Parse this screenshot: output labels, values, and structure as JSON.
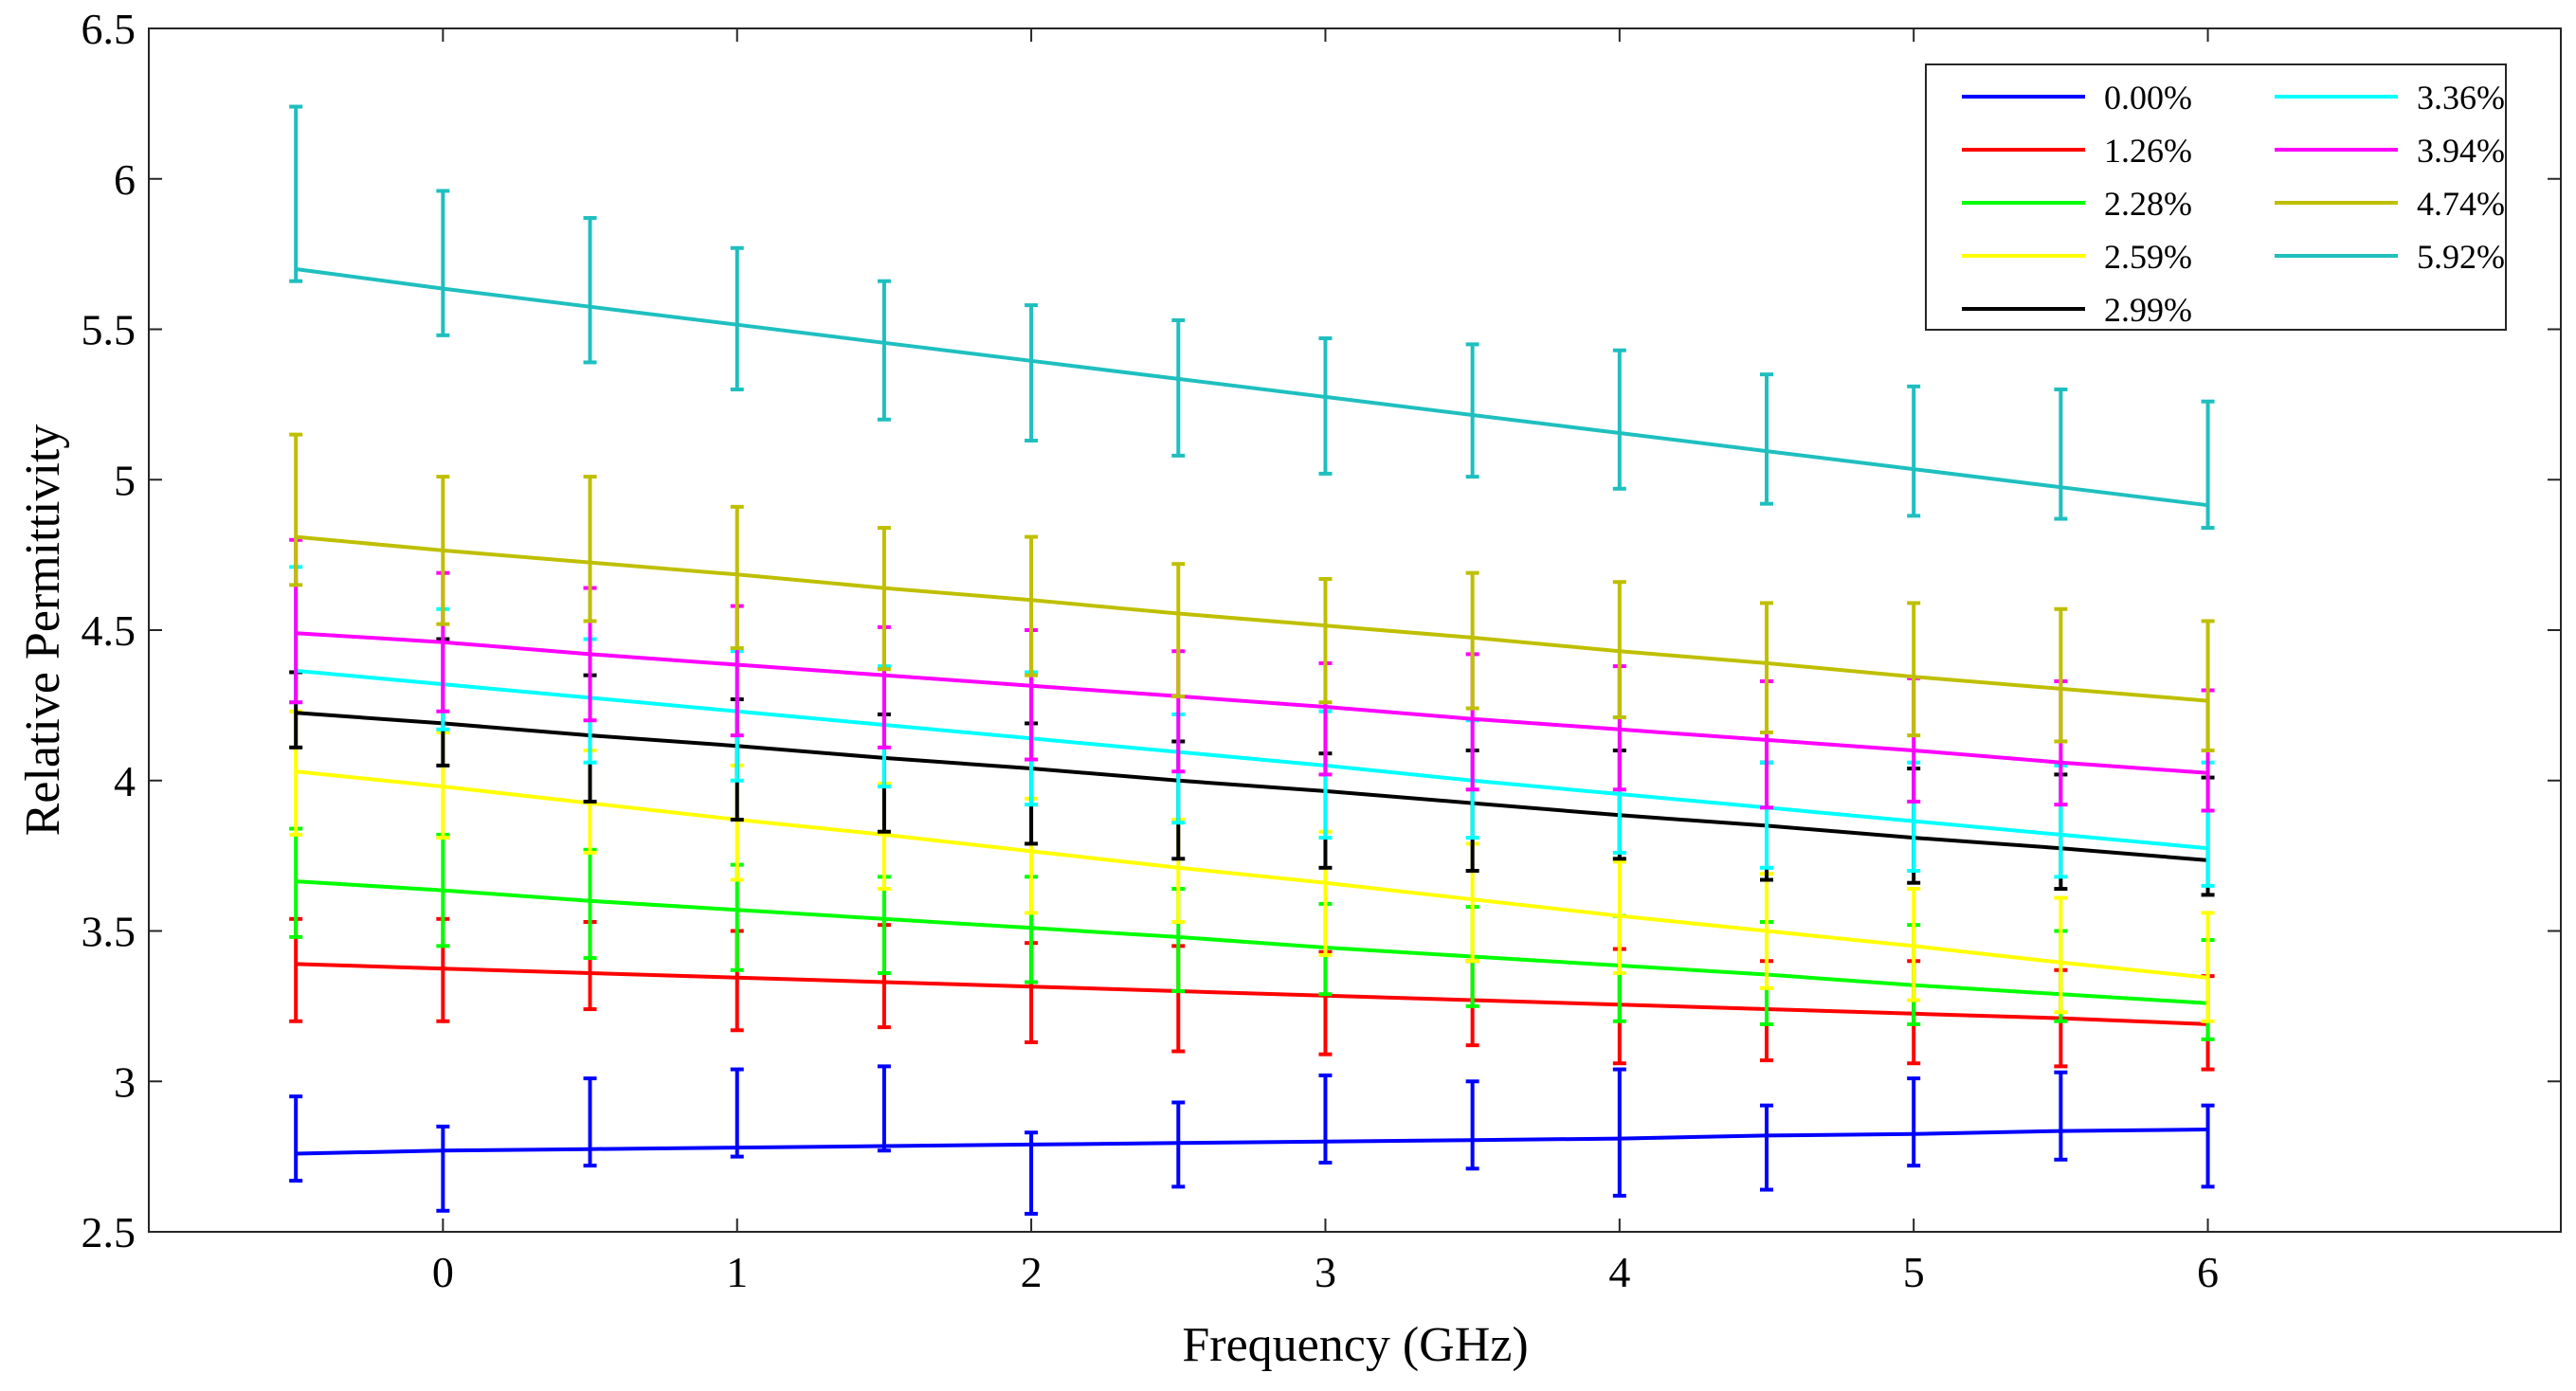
{
  "chart_data": {
    "type": "line",
    "title": "",
    "xlabel": "Frequency (GHz)",
    "ylabel": "Relative Permittivity",
    "xlim": [
      -1,
      7.2
    ],
    "ylim": [
      2.5,
      6.5
    ],
    "xticks": [
      0,
      1,
      2,
      3,
      4,
      5,
      6
    ],
    "yticks": [
      2.5,
      3,
      3.5,
      4,
      4.5,
      5,
      5.5,
      6,
      6.5
    ],
    "xtick_labels": [
      "0",
      "1",
      "2",
      "3",
      "4",
      "5",
      "6"
    ],
    "ytick_labels": [
      "2.5",
      "3",
      "3.5",
      "4",
      "4.5",
      "5",
      "5.5",
      "6",
      "6.5"
    ],
    "grid": false,
    "legend_position": "top-right",
    "x": [
      -0.5,
      0,
      0.5,
      1,
      1.5,
      2,
      2.5,
      3,
      3.5,
      4,
      4.5,
      5,
      5.5,
      6
    ],
    "series": [
      {
        "name": "0.00%",
        "color": "#0000ff",
        "values": [
          2.76,
          2.77,
          2.775,
          2.78,
          2.785,
          2.79,
          2.795,
          2.8,
          2.805,
          2.81,
          2.82,
          2.825,
          2.835,
          2.84
        ],
        "err_low": [
          2.67,
          2.57,
          2.72,
          2.75,
          2.77,
          2.56,
          2.65,
          2.73,
          2.71,
          2.62,
          2.64,
          2.72,
          2.74,
          2.65
        ],
        "err_high": [
          2.95,
          2.85,
          3.01,
          3.04,
          3.05,
          2.83,
          2.93,
          3.02,
          3.0,
          3.04,
          2.92,
          3.01,
          3.03,
          2.92
        ]
      },
      {
        "name": "1.26%",
        "color": "#ff0000",
        "values": [
          3.39,
          3.375,
          3.36,
          3.345,
          3.33,
          3.315,
          3.3,
          3.285,
          3.27,
          3.255,
          3.24,
          3.225,
          3.21,
          3.19
        ],
        "err_low": [
          3.2,
          3.2,
          3.24,
          3.17,
          3.18,
          3.13,
          3.1,
          3.09,
          3.12,
          3.06,
          3.07,
          3.06,
          3.05,
          3.04
        ],
        "err_high": [
          3.54,
          3.54,
          3.53,
          3.5,
          3.52,
          3.46,
          3.45,
          3.43,
          3.4,
          3.44,
          3.4,
          3.4,
          3.37,
          3.35
        ]
      },
      {
        "name": "2.28%",
        "color": "#00ff00",
        "values": [
          3.665,
          3.635,
          3.6,
          3.57,
          3.54,
          3.51,
          3.48,
          3.445,
          3.415,
          3.385,
          3.355,
          3.32,
          3.29,
          3.26
        ],
        "err_low": [
          3.48,
          3.45,
          3.41,
          3.37,
          3.36,
          3.33,
          3.3,
          3.29,
          3.25,
          3.2,
          3.19,
          3.19,
          3.2,
          3.14
        ],
        "err_high": [
          3.84,
          3.82,
          3.77,
          3.72,
          3.68,
          3.68,
          3.64,
          3.59,
          3.58,
          3.55,
          3.53,
          3.52,
          3.5,
          3.47
        ]
      },
      {
        "name": "2.59%",
        "color": "#ffff00",
        "values": [
          4.03,
          3.98,
          3.925,
          3.87,
          3.82,
          3.765,
          3.71,
          3.66,
          3.605,
          3.55,
          3.5,
          3.45,
          3.395,
          3.345
        ],
        "err_low": [
          3.82,
          3.81,
          3.76,
          3.67,
          3.64,
          3.56,
          3.53,
          3.42,
          3.4,
          3.36,
          3.31,
          3.27,
          3.23,
          3.2
        ],
        "err_high": [
          4.23,
          4.16,
          4.1,
          4.05,
          3.99,
          3.94,
          3.87,
          3.83,
          3.79,
          3.73,
          3.69,
          3.64,
          3.61,
          3.56
        ]
      },
      {
        "name": "2.99%",
        "color": "#000000",
        "values": [
          4.225,
          4.19,
          4.15,
          4.115,
          4.075,
          4.04,
          4.0,
          3.965,
          3.925,
          3.885,
          3.85,
          3.81,
          3.775,
          3.735
        ],
        "err_low": [
          4.11,
          4.05,
          3.93,
          3.87,
          3.83,
          3.79,
          3.74,
          3.71,
          3.7,
          3.74,
          3.67,
          3.66,
          3.64,
          3.62
        ],
        "err_high": [
          4.36,
          4.47,
          4.35,
          4.27,
          4.22,
          4.19,
          4.13,
          4.09,
          4.1,
          4.1,
          4.06,
          4.04,
          4.02,
          4.01
        ]
      },
      {
        "name": "3.36%",
        "color": "#00ffff",
        "values": [
          4.365,
          4.32,
          4.275,
          4.23,
          4.185,
          4.14,
          4.095,
          4.05,
          4.0,
          3.955,
          3.91,
          3.865,
          3.82,
          3.775
        ],
        "err_low": [
          4.26,
          4.17,
          4.06,
          4.0,
          3.98,
          3.92,
          3.86,
          3.81,
          3.81,
          3.76,
          3.71,
          3.7,
          3.68,
          3.65
        ],
        "err_high": [
          4.71,
          4.57,
          4.47,
          4.43,
          4.38,
          4.36,
          4.22,
          4.23,
          4.2,
          4.21,
          4.06,
          4.06,
          4.05,
          4.06
        ]
      },
      {
        "name": "3.94%",
        "color": "#ff00ff",
        "values": [
          4.49,
          4.46,
          4.42,
          4.385,
          4.35,
          4.315,
          4.28,
          4.245,
          4.205,
          4.17,
          4.135,
          4.1,
          4.06,
          4.025
        ],
        "err_low": [
          4.26,
          4.23,
          4.2,
          4.15,
          4.11,
          4.07,
          4.03,
          4.02,
          3.97,
          3.97,
          3.91,
          3.93,
          3.92,
          3.9
        ],
        "err_high": [
          4.8,
          4.69,
          4.64,
          4.58,
          4.51,
          4.5,
          4.43,
          4.39,
          4.42,
          4.38,
          4.33,
          4.34,
          4.33,
          4.3
        ]
      },
      {
        "name": "4.74%",
        "color": "#bfbf00",
        "values": [
          4.81,
          4.765,
          4.725,
          4.685,
          4.64,
          4.6,
          4.555,
          4.515,
          4.475,
          4.43,
          4.39,
          4.345,
          4.305,
          4.265
        ],
        "err_low": [
          4.65,
          4.52,
          4.53,
          4.44,
          4.37,
          4.35,
          4.28,
          4.26,
          4.24,
          4.21,
          4.16,
          4.15,
          4.13,
          4.1
        ],
        "err_high": [
          5.15,
          5.01,
          5.01,
          4.91,
          4.84,
          4.81,
          4.72,
          4.67,
          4.69,
          4.66,
          4.59,
          4.59,
          4.57,
          4.53
        ]
      },
      {
        "name": "5.92%",
        "color": "#1fbfbf",
        "values": [
          5.7,
          5.635,
          5.575,
          5.515,
          5.455,
          5.395,
          5.335,
          5.275,
          5.215,
          5.155,
          5.095,
          5.035,
          4.975,
          4.915
        ],
        "err_low": [
          5.66,
          5.48,
          5.39,
          5.3,
          5.2,
          5.13,
          5.08,
          5.02,
          5.01,
          4.97,
          4.92,
          4.88,
          4.87,
          4.84
        ],
        "err_high": [
          6.24,
          5.96,
          5.87,
          5.77,
          5.66,
          5.58,
          5.53,
          5.47,
          5.45,
          5.43,
          5.35,
          5.31,
          5.3,
          5.26
        ]
      }
    ]
  }
}
